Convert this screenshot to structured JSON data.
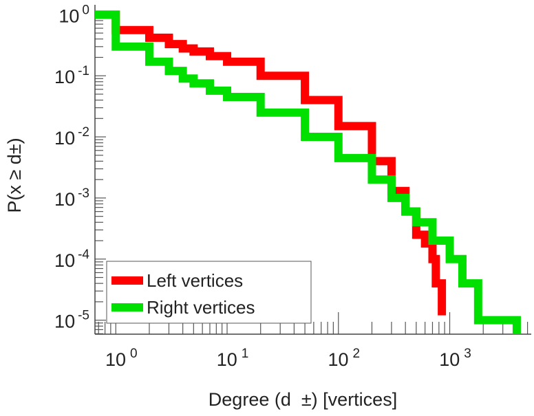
{
  "chart_data": {
    "type": "line",
    "title": "",
    "xlabel": "Degree (d  ±) [vertices]",
    "ylabel": "P(x ≥ d±)",
    "xscale": "log",
    "yscale": "log",
    "xlim": [
      0.65,
      5400
    ],
    "ylim": [
      5.9e-06,
      1.45
    ],
    "x_ticks": [
      {
        "base": "10",
        "exp": "0",
        "value": 1
      },
      {
        "base": "10",
        "exp": "1",
        "value": 10
      },
      {
        "base": "10",
        "exp": "2",
        "value": 100
      },
      {
        "base": "10",
        "exp": "3",
        "value": 1000
      }
    ],
    "y_ticks": [
      {
        "base": "10",
        "exp": "0",
        "value": 1
      },
      {
        "base": "10",
        "exp": "-1",
        "value": 0.1
      },
      {
        "base": "10",
        "exp": "-2",
        "value": 0.01
      },
      {
        "base": "10",
        "exp": "-3",
        "value": 0.001
      },
      {
        "base": "10",
        "exp": "-4",
        "value": 0.0001
      },
      {
        "base": "10",
        "exp": "-5",
        "value": 1e-05
      }
    ],
    "legend_position": "bottom-left",
    "series": [
      {
        "name": "Left vertices",
        "color": "#ff0000",
        "x": [
          0.65,
          1,
          2,
          3,
          4,
          5,
          7,
          10,
          20,
          50,
          100,
          200,
          300,
          400,
          500,
          600,
          700,
          750,
          850
        ],
        "y": [
          1,
          0.56,
          0.42,
          0.33,
          0.28,
          0.25,
          0.21,
          0.17,
          0.1,
          0.04,
          0.015,
          0.004,
          0.0013,
          0.0006,
          0.00025,
          0.00018,
          0.0001,
          4e-05,
          1.2e-05
        ]
      },
      {
        "name": "Right vertices",
        "color": "#00e000",
        "x": [
          0.65,
          1,
          2,
          3,
          4,
          5,
          7,
          10,
          20,
          50,
          100,
          200,
          300,
          400,
          500,
          700,
          1000,
          1300,
          1800,
          4000
        ],
        "y": [
          1,
          0.3,
          0.17,
          0.12,
          0.09,
          0.075,
          0.057,
          0.045,
          0.025,
          0.01,
          0.0045,
          0.002,
          0.001,
          0.0006,
          0.0004,
          0.0002,
          0.0001,
          4e-05,
          1e-05,
          5.9e-06
        ]
      }
    ]
  }
}
